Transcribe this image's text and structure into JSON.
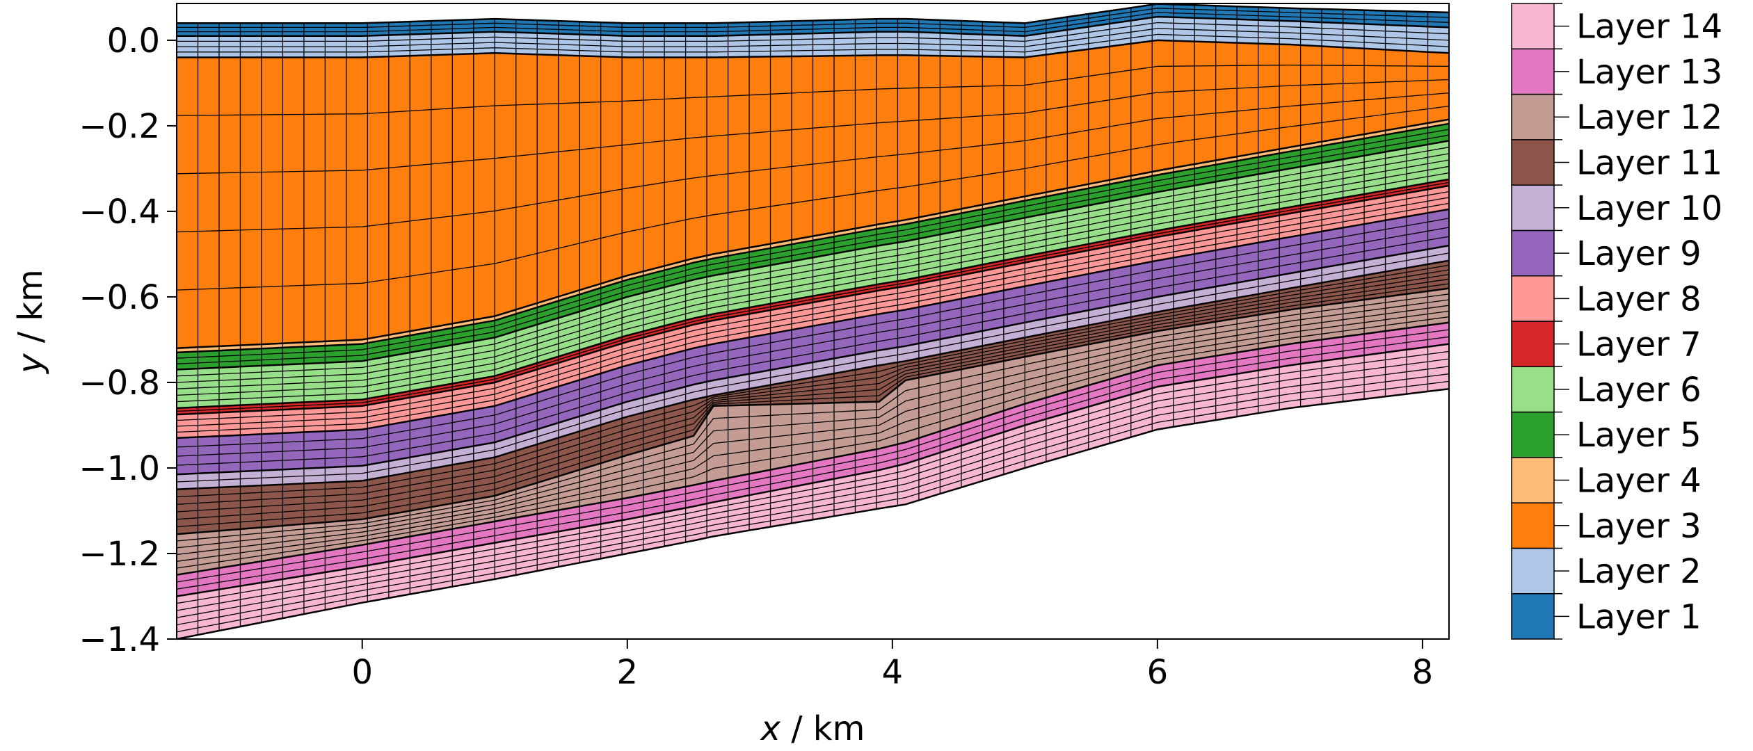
{
  "chart_data": {
    "type": "area",
    "xlabel_var": "x",
    "xlabel_unit": " / km",
    "ylabel_var": "y",
    "ylabel_unit": " / km",
    "xlim": [
      -1.4,
      8.2
    ],
    "ylim": [
      -1.4,
      0.086
    ],
    "xticks": [
      0,
      2,
      4,
      6,
      8
    ],
    "xtick_labels": [
      "0",
      "2",
      "4",
      "6",
      "8"
    ],
    "yticks": [
      0.0,
      -0.2,
      -0.4,
      -0.6,
      -0.8,
      -1.0,
      -1.2,
      -1.4
    ],
    "ytick_labels": [
      "0.0",
      "−0.2",
      "−0.4",
      "−0.6",
      "−0.8",
      "−1.0",
      "−1.2",
      "−1.4"
    ],
    "grid": false,
    "legend_placement": "right colorbar",
    "x_nodes": [
      -1.4,
      0,
      1,
      2,
      2.5,
      2.65,
      3.9,
      4.1,
      5,
      6,
      7,
      8.2
    ],
    "surface": [
      0.04,
      0.04,
      0.05,
      0.04,
      0.04,
      0.04,
      0.05,
      0.05,
      0.04,
      0.085,
      0.075,
      0.065
    ],
    "layers": [
      {
        "name": "Layer 1",
        "color": "#1f77b4",
        "cells": 3,
        "bottom": [
          0.01,
          0.01,
          0.02,
          0.01,
          0.01,
          0.01,
          0.02,
          0.02,
          0.01,
          0.055,
          0.045,
          0.03
        ]
      },
      {
        "name": "Layer 2",
        "color": "#aec7e8",
        "cells": 4,
        "bottom": [
          -0.04,
          -0.04,
          -0.03,
          -0.04,
          -0.04,
          -0.04,
          -0.035,
          -0.035,
          -0.04,
          0.0,
          -0.01,
          -0.03
        ]
      },
      {
        "name": "Layer 3",
        "color": "#ff7f0e",
        "cells": 5,
        "bottom": [
          -0.72,
          -0.7,
          -0.645,
          -0.55,
          -0.51,
          -0.5,
          -0.43,
          -0.42,
          -0.365,
          -0.305,
          -0.25,
          -0.185
        ]
      },
      {
        "name": "Layer 4",
        "color": "#ffbb78",
        "cells": 1,
        "bottom": [
          -0.73,
          -0.71,
          -0.655,
          -0.56,
          -0.52,
          -0.51,
          -0.44,
          -0.43,
          -0.375,
          -0.315,
          -0.26,
          -0.195
        ]
      },
      {
        "name": "Layer 5",
        "color": "#2ca02c",
        "cells": 3,
        "bottom": [
          -0.77,
          -0.75,
          -0.695,
          -0.6,
          -0.56,
          -0.55,
          -0.48,
          -0.47,
          -0.415,
          -0.355,
          -0.3,
          -0.235
        ]
      },
      {
        "name": "Layer 6",
        "color": "#98df8a",
        "cells": 6,
        "bottom": [
          -0.86,
          -0.84,
          -0.785,
          -0.69,
          -0.65,
          -0.64,
          -0.57,
          -0.56,
          -0.505,
          -0.445,
          -0.39,
          -0.325
        ]
      },
      {
        "name": "Layer 7",
        "color": "#d62728",
        "cells": 2,
        "bottom": [
          -0.875,
          -0.855,
          -0.8,
          -0.705,
          -0.665,
          -0.655,
          -0.585,
          -0.575,
          -0.52,
          -0.46,
          -0.405,
          -0.34
        ]
      },
      {
        "name": "Layer 8",
        "color": "#ff9896",
        "cells": 4,
        "bottom": [
          -0.93,
          -0.91,
          -0.855,
          -0.76,
          -0.72,
          -0.71,
          -0.64,
          -0.63,
          -0.575,
          -0.515,
          -0.46,
          -0.395
        ]
      },
      {
        "name": "Layer 9",
        "color": "#9467bd",
        "cells": 4,
        "bottom": [
          -1.015,
          -0.995,
          -0.94,
          -0.845,
          -0.805,
          -0.795,
          -0.725,
          -0.715,
          -0.66,
          -0.6,
          -0.545,
          -0.48
        ]
      },
      {
        "name": "Layer 10",
        "color": "#c5b0d5",
        "cells": 2,
        "bottom": [
          -1.05,
          -1.03,
          -0.975,
          -0.88,
          -0.84,
          -0.83,
          -0.76,
          -0.75,
          -0.695,
          -0.635,
          -0.58,
          -0.515
        ]
      },
      {
        "name": "Layer 11",
        "color": "#8c564b",
        "cells": 6,
        "bottom": [
          -1.155,
          -1.12,
          -1.065,
          -0.97,
          -0.925,
          -0.855,
          -0.845,
          -0.795,
          -0.74,
          -0.68,
          -0.63,
          -0.58
        ]
      },
      {
        "name": "Layer 12",
        "color": "#c49c94",
        "cells": 6,
        "bottom": [
          -1.25,
          -1.18,
          -1.125,
          -1.07,
          -1.04,
          -1.03,
          -0.955,
          -0.94,
          -0.85,
          -0.76,
          -0.71,
          -0.66
        ]
      },
      {
        "name": "Layer 13",
        "color": "#e377c2",
        "cells": 3,
        "bottom": [
          -1.3,
          -1.23,
          -1.175,
          -1.12,
          -1.09,
          -1.08,
          -1.005,
          -0.99,
          -0.9,
          -0.81,
          -0.76,
          -0.71
        ]
      },
      {
        "name": "Layer 14",
        "color": "#f7b6d2",
        "cells": 6,
        "bottom": [
          -1.4,
          -1.315,
          -1.26,
          -1.2,
          -1.17,
          -1.16,
          -1.095,
          -1.085,
          -1.0,
          -0.91,
          -0.86,
          -0.815
        ]
      }
    ]
  }
}
